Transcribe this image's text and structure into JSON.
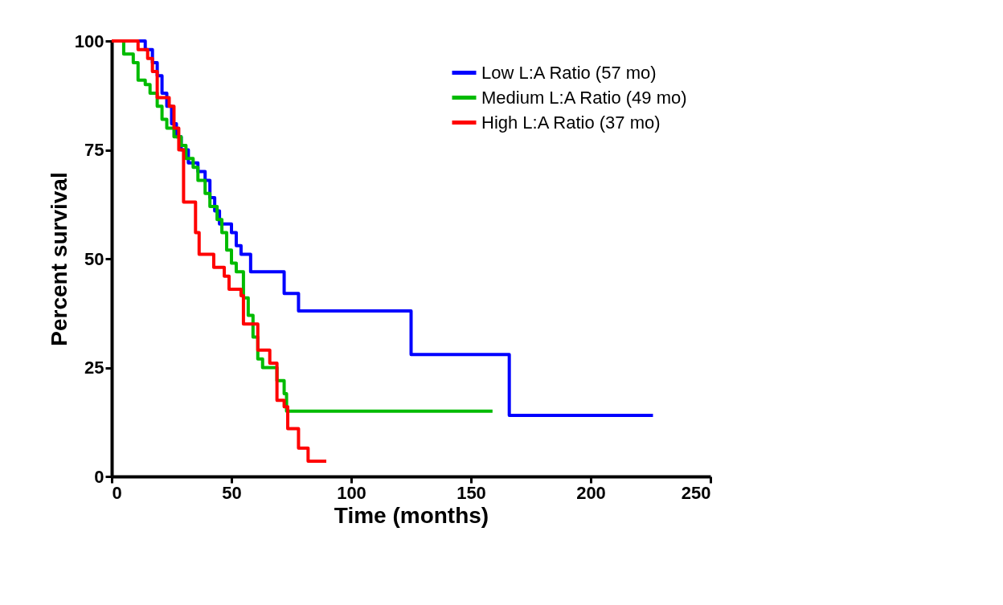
{
  "chart_data": {
    "type": "step",
    "xlabel": "Time  (months)",
    "ylabel": "Percent survival",
    "xlim": [
      0,
      250
    ],
    "xticks": [
      0,
      50,
      100,
      150,
      200,
      250
    ],
    "ylim": [
      0,
      100
    ],
    "yticks": [
      0,
      25,
      50,
      75,
      100
    ],
    "grid": false,
    "legend": "top right",
    "line_style": "solid",
    "series": [
      {
        "name": "Low L:A Ratio (57 mo)",
        "color": "#0000ff",
        "x": [
          0,
          14,
          17,
          19,
          21,
          23,
          25,
          27,
          29,
          32,
          36,
          39,
          41,
          43,
          45,
          50,
          52,
          54,
          58,
          72,
          78,
          125,
          166,
          226
        ],
        "values": [
          100,
          98,
          95,
          92,
          88,
          85,
          81,
          78,
          75,
          72,
          70,
          68,
          64,
          61,
          58,
          56,
          53,
          51,
          47,
          42,
          38,
          28,
          14,
          14
        ]
      },
      {
        "name": "Medium L:A  Ratio (49 mo)",
        "color": "#00bb00",
        "x": [
          0,
          5,
          9,
          11,
          14,
          16,
          19,
          21,
          23,
          26,
          29,
          31,
          34,
          36,
          39,
          41,
          44,
          46,
          48,
          50,
          52,
          55,
          57,
          59,
          61,
          63,
          69,
          72,
          73,
          159
        ],
        "values": [
          100,
          97,
          95,
          91,
          90,
          88,
          85,
          82,
          80,
          78,
          76,
          73,
          71,
          68,
          65,
          62,
          59,
          56,
          52,
          49,
          47,
          41,
          37,
          32,
          27,
          25,
          22,
          19,
          15,
          15
        ]
      },
      {
        "name": "High L:A  Ratio (37 mo)",
        "color": "#ff0000",
        "x": [
          0,
          11,
          15,
          17,
          19,
          24,
          26,
          28,
          30,
          35,
          36.5,
          42.6,
          47,
          49,
          54,
          55,
          61,
          66,
          69,
          72,
          73.5,
          78,
          82,
          89.6
        ],
        "values": [
          100,
          98,
          96,
          93,
          87,
          85,
          80,
          75,
          63,
          56,
          51,
          48,
          46,
          43,
          41.5,
          35,
          29,
          26,
          17.5,
          16,
          11,
          6.5,
          3.5,
          3.5
        ]
      }
    ]
  }
}
